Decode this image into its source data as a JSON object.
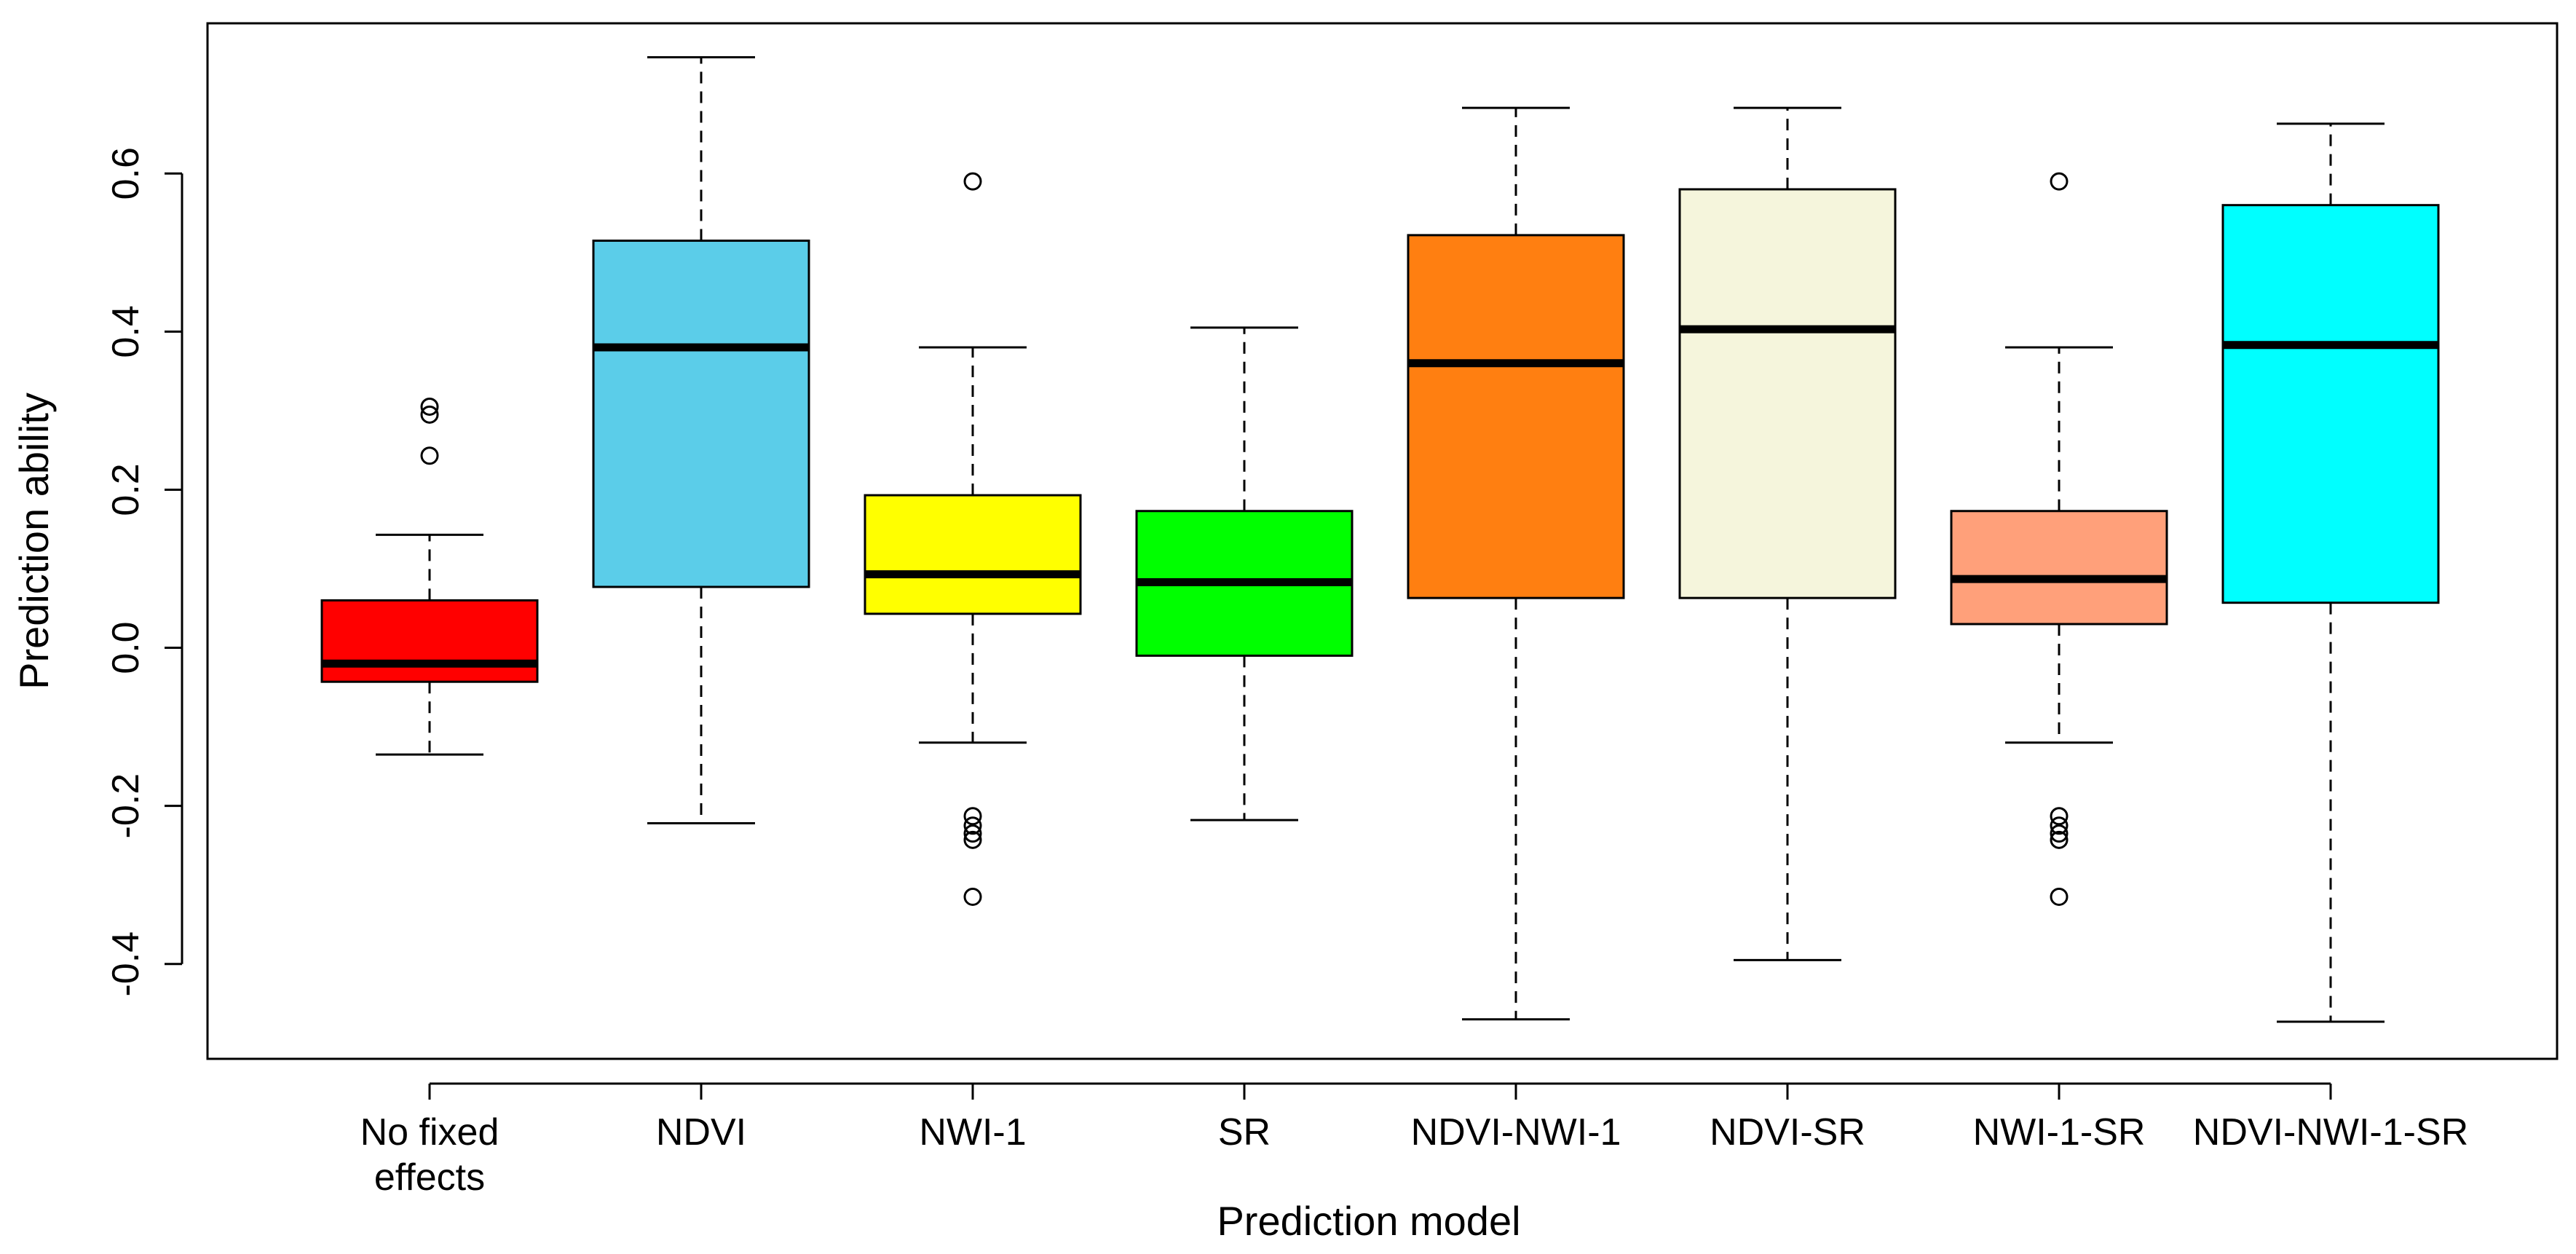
{
  "chart_data": {
    "type": "boxplot",
    "title": "",
    "xlabel": "Prediction model",
    "ylabel": "Prediction ability",
    "ylim": [
      -0.52,
      0.79
    ],
    "yticks": [
      -0.4,
      -0.2,
      0.0,
      0.2,
      0.4,
      0.6
    ],
    "ytick_labels": [
      "-0.4",
      "-0.2",
      "0.0",
      "0.2",
      "0.4",
      "0.6"
    ],
    "boxes": [
      {
        "label_lines": [
          "No fixed",
          "effects"
        ],
        "color": "#ff0000",
        "whisker_low": -0.135,
        "q1": -0.043,
        "median": -0.02,
        "q3": 0.06,
        "whisker_high": 0.143,
        "outliers": [
          0.305,
          0.295,
          0.243
        ]
      },
      {
        "label_lines": [
          "NDVI"
        ],
        "color": "#5bcde9",
        "whisker_low": -0.222,
        "q1": 0.077,
        "median": 0.38,
        "q3": 0.515,
        "whisker_high": 0.747,
        "outliers": []
      },
      {
        "label_lines": [
          "NWI-1"
        ],
        "color": "#ffff00",
        "whisker_low": -0.12,
        "q1": 0.043,
        "median": 0.093,
        "q3": 0.193,
        "whisker_high": 0.38,
        "outliers": [
          0.59,
          -0.213,
          -0.225,
          -0.235,
          -0.243,
          -0.315
        ]
      },
      {
        "label_lines": [
          "SR"
        ],
        "color": "#00ff00",
        "whisker_low": -0.218,
        "q1": -0.01,
        "median": 0.083,
        "q3": 0.173,
        "whisker_high": 0.405,
        "outliers": []
      },
      {
        "label_lines": [
          "NDVI-NWI-1"
        ],
        "color": "#ff7f11",
        "whisker_low": -0.47,
        "q1": 0.063,
        "median": 0.36,
        "q3": 0.522,
        "whisker_high": 0.683,
        "outliers": []
      },
      {
        "label_lines": [
          "NDVI-SR"
        ],
        "color": "#f5f5dc",
        "whisker_low": -0.395,
        "q1": 0.063,
        "median": 0.403,
        "q3": 0.58,
        "whisker_high": 0.683,
        "outliers": []
      },
      {
        "label_lines": [
          "NWI-1-SR"
        ],
        "color": "#ffa07a",
        "whisker_low": -0.12,
        "q1": 0.03,
        "median": 0.087,
        "q3": 0.173,
        "whisker_high": 0.38,
        "outliers": [
          0.59,
          -0.213,
          -0.225,
          -0.235,
          -0.243,
          -0.315
        ]
      },
      {
        "label_lines": [
          "NDVI-NWI-1-SR"
        ],
        "color": "#00ffff",
        "whisker_low": -0.473,
        "q1": 0.057,
        "median": 0.383,
        "q3": 0.56,
        "whisker_high": 0.663,
        "outliers": []
      }
    ]
  }
}
